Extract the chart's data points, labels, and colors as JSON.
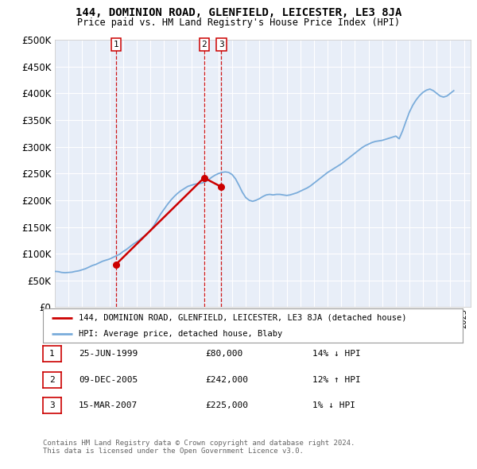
{
  "title": "144, DOMINION ROAD, GLENFIELD, LEICESTER, LE3 8JA",
  "subtitle": "Price paid vs. HM Land Registry's House Price Index (HPI)",
  "legend_label_red": "144, DOMINION ROAD, GLENFIELD, LEICESTER, LE3 8JA (detached house)",
  "legend_label_blue": "HPI: Average price, detached house, Blaby",
  "footer1": "Contains HM Land Registry data © Crown copyright and database right 2024.",
  "footer2": "This data is licensed under the Open Government Licence v3.0.",
  "transactions": [
    {
      "num": 1,
      "date": "25-JUN-1999",
      "price": 80000,
      "pct": "14%",
      "dir": "↓",
      "year_x": 1999.48
    },
    {
      "num": 2,
      "date": "09-DEC-2005",
      "price": 242000,
      "pct": "12%",
      "dir": "↑",
      "year_x": 2005.94
    },
    {
      "num": 3,
      "date": "15-MAR-2007",
      "price": 225000,
      "pct": "1%",
      "dir": "↓",
      "year_x": 2007.21
    }
  ],
  "hpi_years": [
    1995.0,
    1995.25,
    1995.5,
    1995.75,
    1996.0,
    1996.25,
    1996.5,
    1996.75,
    1997.0,
    1997.25,
    1997.5,
    1997.75,
    1998.0,
    1998.25,
    1998.5,
    1998.75,
    1999.0,
    1999.25,
    1999.5,
    1999.75,
    2000.0,
    2000.25,
    2000.5,
    2000.75,
    2001.0,
    2001.25,
    2001.5,
    2001.75,
    2002.0,
    2002.25,
    2002.5,
    2002.75,
    2003.0,
    2003.25,
    2003.5,
    2003.75,
    2004.0,
    2004.25,
    2004.5,
    2004.75,
    2005.0,
    2005.25,
    2005.5,
    2005.75,
    2006.0,
    2006.25,
    2006.5,
    2006.75,
    2007.0,
    2007.25,
    2007.5,
    2007.75,
    2008.0,
    2008.25,
    2008.5,
    2008.75,
    2009.0,
    2009.25,
    2009.5,
    2009.75,
    2010.0,
    2010.25,
    2010.5,
    2010.75,
    2011.0,
    2011.25,
    2011.5,
    2011.75,
    2012.0,
    2012.25,
    2012.5,
    2012.75,
    2013.0,
    2013.25,
    2013.5,
    2013.75,
    2014.0,
    2014.25,
    2014.5,
    2014.75,
    2015.0,
    2015.25,
    2015.5,
    2015.75,
    2016.0,
    2016.25,
    2016.5,
    2016.75,
    2017.0,
    2017.25,
    2017.5,
    2017.75,
    2018.0,
    2018.25,
    2018.5,
    2018.75,
    2019.0,
    2019.25,
    2019.5,
    2019.75,
    2020.0,
    2020.25,
    2020.5,
    2020.75,
    2021.0,
    2021.25,
    2021.5,
    2021.75,
    2022.0,
    2022.25,
    2022.5,
    2022.75,
    2023.0,
    2023.25,
    2023.5,
    2023.75,
    2024.0,
    2024.25
  ],
  "hpi_values": [
    67000,
    66500,
    65000,
    64500,
    65000,
    65500,
    67000,
    68000,
    70000,
    72000,
    75000,
    78000,
    80000,
    83000,
    86000,
    88000,
    90000,
    93000,
    96000,
    99000,
    104000,
    108000,
    113000,
    118000,
    122000,
    127000,
    132000,
    137000,
    143000,
    152000,
    163000,
    174000,
    183000,
    192000,
    200000,
    207000,
    213000,
    218000,
    222000,
    226000,
    228000,
    230000,
    231000,
    232000,
    234000,
    238000,
    243000,
    247000,
    250000,
    252000,
    253000,
    252000,
    248000,
    240000,
    228000,
    215000,
    205000,
    200000,
    198000,
    200000,
    203000,
    207000,
    210000,
    211000,
    210000,
    211000,
    211000,
    210000,
    209000,
    210000,
    212000,
    214000,
    217000,
    220000,
    223000,
    227000,
    232000,
    237000,
    242000,
    247000,
    252000,
    256000,
    260000,
    264000,
    268000,
    273000,
    278000,
    283000,
    288000,
    293000,
    298000,
    302000,
    305000,
    308000,
    310000,
    311000,
    312000,
    314000,
    316000,
    318000,
    320000,
    315000,
    330000,
    348000,
    365000,
    378000,
    388000,
    396000,
    402000,
    406000,
    408000,
    405000,
    400000,
    395000,
    393000,
    395000,
    400000,
    405000
  ],
  "paid_years": [
    1999.48,
    2005.94,
    2007.21
  ],
  "paid_values": [
    80000,
    242000,
    225000
  ],
  "xlim": [
    1995.0,
    2025.5
  ],
  "ylim": [
    0,
    500000
  ],
  "yticks": [
    0,
    50000,
    100000,
    150000,
    200000,
    250000,
    300000,
    350000,
    400000,
    450000,
    500000
  ],
  "background_color": "#e8eef8",
  "grid_color": "#ffffff",
  "red_color": "#cc0000",
  "blue_color": "#7aacdb",
  "box_border": "#cc0000"
}
